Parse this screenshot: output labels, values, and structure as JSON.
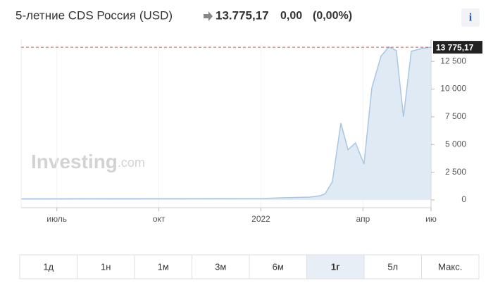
{
  "chart_data": {
    "type": "area",
    "title": "5-летние CDS Россия (USD)",
    "price": "13.775,17",
    "change": "0,00",
    "change_pct": "(0,00%)",
    "info": "i",
    "watermark": "Investing",
    "watermark_suffix": ".com",
    "color": "#a9c6e3",
    "fill": "#dfeaf5",
    "x": [
      5.95,
      13.0,
      13.61,
      14.44,
      14.75,
      14.89,
      15.1,
      15.35,
      15.56,
      15.78,
      16.03,
      16.26,
      16.53,
      16.76,
      16.98,
      17.19,
      17.42,
      17.75,
      17.98
    ],
    "values": [
      100,
      130,
      190,
      250,
      380,
      570,
      1650,
      6930,
      4520,
      5150,
      3240,
      10110,
      12970,
      13800,
      13480,
      7500,
      13420,
      13680,
      13775.17
    ],
    "current_value": {
      "value": 13775.17,
      "label": "13 775,17"
    },
    "xlim": [
      5.95,
      18.0
    ],
    "xticks": [
      {
        "value": 7,
        "label": "июль"
      },
      {
        "value": 10,
        "label": "окт"
      },
      {
        "value": 13,
        "label": "2022"
      },
      {
        "value": 16,
        "label": "апр"
      },
      {
        "value": 18,
        "label": "ию"
      }
    ],
    "ylim": [
      -700,
      14100
    ],
    "yticks": [
      0,
      {
        "value": 2500,
        "label": "2 500"
      },
      {
        "value": 5000,
        "label": "5 000"
      },
      {
        "value": 7500,
        "label": "7 500"
      },
      {
        "value": 10000,
        "label": "10 000"
      },
      {
        "value": 12500,
        "label": "12 500"
      }
    ],
    "range_buttons": [
      "1д",
      "1н",
      "1м",
      "3м",
      "6м",
      "1г",
      "5л",
      "Макс."
    ],
    "selected_range": "1г"
  }
}
